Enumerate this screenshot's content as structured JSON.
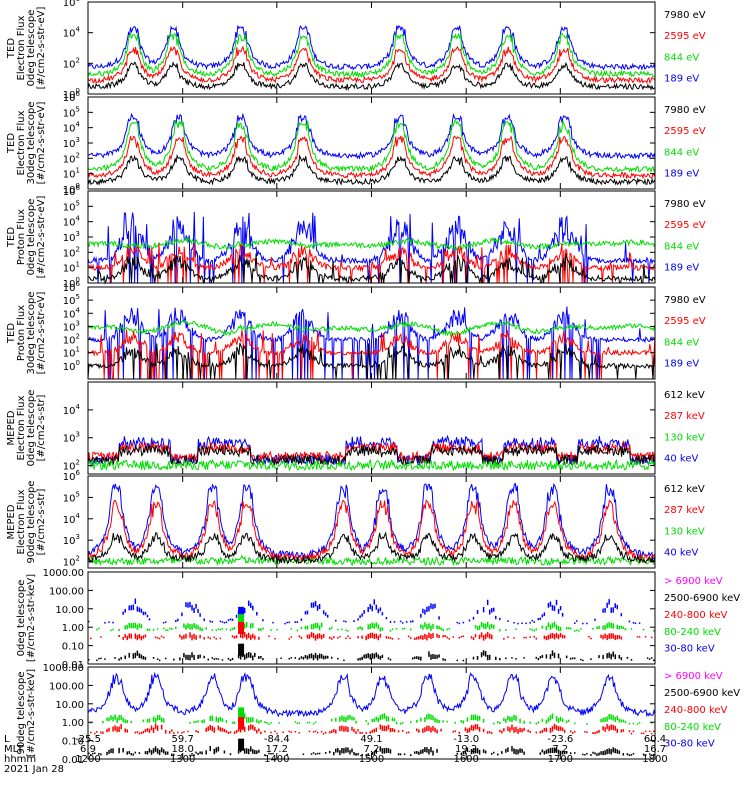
{
  "colors": {
    "black": "#000000",
    "red": "#ff0000",
    "green": "#00dd00",
    "blue": "#0000ff",
    "magenta": "#ff00ff"
  },
  "chart_data": [
    {
      "type": "line",
      "ylabel": [
        "TED",
        "Electron Flux",
        "0deg telescope",
        "[#/cm2-s-str-eV]"
      ],
      "ylim": [
        1,
        1000000
      ],
      "log": true,
      "yticks": [
        {
          "value": 1,
          "label": "10",
          "exp": "0"
        },
        {
          "value": 100,
          "label": "10",
          "exp": "2"
        },
        {
          "value": 10000,
          "label": "10",
          "exp": "4"
        },
        {
          "value": 1000000,
          "label": "10",
          "exp": "6"
        }
      ],
      "legend": [
        {
          "label": "7980 eV",
          "color": "black"
        },
        {
          "label": "2595 eV",
          "color": "red"
        },
        {
          "label": "844 eV",
          "color": "green"
        },
        {
          "label": "189 eV",
          "color": "blue"
        }
      ],
      "bursts": [
        0.08,
        0.15,
        0.27,
        0.38,
        0.55,
        0.65,
        0.74,
        0.84
      ],
      "series": [
        {
          "color": "blue",
          "base": 60,
          "peak": 20000,
          "shape": "burst"
        },
        {
          "color": "green",
          "base": 20,
          "peak": 6000,
          "shape": "burst"
        },
        {
          "color": "red",
          "base": 8,
          "peak": 800,
          "shape": "burst"
        },
        {
          "color": "black",
          "base": 3,
          "peak": 80,
          "shape": "burst"
        }
      ]
    },
    {
      "type": "line",
      "ylabel": [
        "TED",
        "Electron Flux",
        "30deg telescope",
        "[#/cm2-s-str-eV]"
      ],
      "ylim": [
        1,
        1000000
      ],
      "log": true,
      "yticks": [
        {
          "value": 1,
          "label": "10",
          "exp": "0"
        },
        {
          "value": 10,
          "label": "10",
          "exp": "1"
        },
        {
          "value": 100,
          "label": "10",
          "exp": "2"
        },
        {
          "value": 1000,
          "label": "10",
          "exp": "3"
        },
        {
          "value": 10000,
          "label": "10",
          "exp": "4"
        },
        {
          "value": 100000,
          "label": "10",
          "exp": "5"
        },
        {
          "value": 1000000,
          "label": "10",
          "exp": "6"
        }
      ],
      "legend": [
        {
          "label": "7980 eV",
          "color": "black"
        },
        {
          "label": "2595 eV",
          "color": "red"
        },
        {
          "label": "844 eV",
          "color": "green"
        },
        {
          "label": "189 eV",
          "color": "blue"
        }
      ],
      "bursts": [
        0.08,
        0.16,
        0.27,
        0.38,
        0.55,
        0.65,
        0.74,
        0.84
      ],
      "series": [
        {
          "color": "blue",
          "base": 150,
          "peak": 50000,
          "shape": "burst"
        },
        {
          "color": "green",
          "base": 20,
          "peak": 20000,
          "shape": "burst"
        },
        {
          "color": "red",
          "base": 8,
          "peak": 2000,
          "shape": "burst"
        },
        {
          "color": "black",
          "base": 3,
          "peak": 100,
          "shape": "burst"
        }
      ]
    },
    {
      "type": "line",
      "ylabel": [
        "TED",
        "Proton Flux",
        "0deg telescope",
        "[#/cm2-s-str-eV]"
      ],
      "ylim": [
        1,
        1000000
      ],
      "log": true,
      "yticks": [
        {
          "value": 1,
          "label": "10",
          "exp": "0"
        },
        {
          "value": 10,
          "label": "10",
          "exp": "1"
        },
        {
          "value": 100,
          "label": "10",
          "exp": "2"
        },
        {
          "value": 1000,
          "label": "10",
          "exp": "3"
        },
        {
          "value": 10000,
          "label": "10",
          "exp": "4"
        },
        {
          "value": 100000,
          "label": "10",
          "exp": "5"
        },
        {
          "value": 1000000,
          "label": "10",
          "exp": "6"
        }
      ],
      "legend": [
        {
          "label": "7980 eV",
          "color": "black"
        },
        {
          "label": "2595 eV",
          "color": "red"
        },
        {
          "label": "844 eV",
          "color": "green"
        },
        {
          "label": "189 eV",
          "color": "blue"
        }
      ],
      "bursts": [
        0.08,
        0.16,
        0.27,
        0.38,
        0.55,
        0.65,
        0.74,
        0.84
      ],
      "series": [
        {
          "color": "blue",
          "base": 30,
          "peak": 30000,
          "shape": "spiky"
        },
        {
          "color": "green",
          "base": 200,
          "peak": 600,
          "shape": "wave"
        },
        {
          "color": "red",
          "base": 10,
          "peak": 300,
          "shape": "spiky"
        },
        {
          "color": "black",
          "base": 2,
          "peak": 60,
          "shape": "spiky"
        }
      ]
    },
    {
      "type": "line",
      "ylabel": [
        "TED",
        "Proton Flux",
        "30deg telescope",
        "[#/cm2-s-str-eV]"
      ],
      "ylim": [
        0.1,
        1000000
      ],
      "log": true,
      "yticks": [
        {
          "value": 1,
          "label": "10",
          "exp": "0"
        },
        {
          "value": 10,
          "label": "10",
          "exp": "1"
        },
        {
          "value": 100,
          "label": "10",
          "exp": "2"
        },
        {
          "value": 1000,
          "label": "10",
          "exp": "3"
        },
        {
          "value": 10000,
          "label": "10",
          "exp": "4"
        },
        {
          "value": 100000,
          "label": "10",
          "exp": "5"
        },
        {
          "value": 1000000,
          "label": "10",
          "exp": "6"
        }
      ],
      "legend": [
        {
          "label": "7980 eV",
          "color": "black"
        },
        {
          "label": "2595 eV",
          "color": "red"
        },
        {
          "label": "844 eV",
          "color": "green"
        },
        {
          "label": "189 eV",
          "color": "blue"
        }
      ],
      "bursts": [
        0.08,
        0.16,
        0.27,
        0.38,
        0.55,
        0.65,
        0.74,
        0.84
      ],
      "series": [
        {
          "color": "blue",
          "base": 100,
          "peak": 30000,
          "shape": "spiky"
        },
        {
          "color": "green",
          "base": 300,
          "peak": 2000,
          "shape": "wave"
        },
        {
          "color": "red",
          "base": 10,
          "peak": 400,
          "shape": "spiky"
        },
        {
          "color": "black",
          "base": 1,
          "peak": 40,
          "shape": "spiky"
        }
      ]
    },
    {
      "type": "line",
      "ylabel": [
        "MEPED",
        "Electron Flux",
        "0deg telescope",
        "[#/cm2-s-str]"
      ],
      "ylim": [
        50,
        100000
      ],
      "log": true,
      "yticks": [
        {
          "value": 100,
          "label": "10",
          "exp": "2"
        },
        {
          "value": 1000,
          "label": "10",
          "exp": "3"
        },
        {
          "value": 10000,
          "label": "10",
          "exp": "4"
        }
      ],
      "legend": [
        {
          "label": "612 keV",
          "color": "black"
        },
        {
          "label": "287 keV",
          "color": "red"
        },
        {
          "label": "130 keV",
          "color": "green"
        },
        {
          "label": "40 keV",
          "color": "blue"
        }
      ],
      "bursts": [
        0.1,
        0.24,
        0.5,
        0.65,
        0.78,
        0.91
      ],
      "series": [
        {
          "color": "blue",
          "base": 150,
          "peak": 800,
          "shape": "plateau"
        },
        {
          "color": "red",
          "base": 200,
          "peak": 500,
          "shape": "plateau"
        },
        {
          "color": "black",
          "base": 150,
          "peak": 400,
          "shape": "plateau"
        },
        {
          "color": "green",
          "base": 100,
          "peak": 130,
          "shape": "floor"
        }
      ]
    },
    {
      "type": "line",
      "ylabel": [
        "MEPED",
        "Electron Flux",
        "90deg telescope",
        "[#/cm2-s-str]"
      ],
      "ylim": [
        50,
        1000000
      ],
      "log": true,
      "yticks": [
        {
          "value": 100,
          "label": "10",
          "exp": "2"
        },
        {
          "value": 1000,
          "label": "10",
          "exp": "3"
        },
        {
          "value": 10000,
          "label": "10",
          "exp": "4"
        },
        {
          "value": 100000,
          "label": "10",
          "exp": "5"
        },
        {
          "value": 1000000,
          "label": "10",
          "exp": "6"
        }
      ],
      "legend": [
        {
          "label": "612 keV",
          "color": "black"
        },
        {
          "label": "287 keV",
          "color": "red"
        },
        {
          "label": "130 keV",
          "color": "green"
        },
        {
          "label": "40 keV",
          "color": "blue"
        }
      ],
      "bursts": [
        0.05,
        0.12,
        0.22,
        0.28,
        0.45,
        0.52,
        0.6,
        0.68,
        0.75,
        0.82,
        0.92
      ],
      "series": [
        {
          "color": "blue",
          "base": 200,
          "peak": 300000,
          "shape": "burst"
        },
        {
          "color": "red",
          "base": 150,
          "peak": 50000,
          "shape": "burst"
        },
        {
          "color": "green",
          "base": 100,
          "peak": 150,
          "shape": "floor"
        },
        {
          "color": "black",
          "base": 120,
          "peak": 1500,
          "shape": "burst"
        }
      ]
    },
    {
      "type": "scatter",
      "ylabel": [
        "0deg telescope",
        "[#/cm2-s-str-keV]"
      ],
      "ylim": [
        0.01,
        1000
      ],
      "log": true,
      "yticks": [
        {
          "value": 0.01,
          "label": "0.01"
        },
        {
          "value": 0.1,
          "label": "0.10"
        },
        {
          "value": 1,
          "label": "1.00"
        },
        {
          "value": 10,
          "label": "10.00"
        },
        {
          "value": 100,
          "label": "100.00"
        },
        {
          "value": 1000,
          "label": "1000.00"
        }
      ],
      "legend": [
        {
          "label": "> 6900 keV",
          "color": "magenta"
        },
        {
          "label": "2500-6900 keV",
          "color": "black"
        },
        {
          "label": "240-800 keV",
          "color": "red"
        },
        {
          "label": "80-240 keV",
          "color": "green"
        },
        {
          "label": "30-80 keV",
          "color": "blue"
        }
      ],
      "bursts": [
        0.08,
        0.18,
        0.28,
        0.4,
        0.5,
        0.6,
        0.7,
        0.82,
        0.92
      ],
      "series": [
        {
          "color": "blue",
          "base": 2,
          "peak": 40,
          "shape": "dots"
        },
        {
          "color": "green",
          "base": 0.8,
          "peak": 2,
          "shape": "dots"
        },
        {
          "color": "red",
          "base": 0.3,
          "peak": 0.5,
          "shape": "dots"
        },
        {
          "color": "black",
          "base": 0.02,
          "peak": 0.05,
          "shape": "dots"
        }
      ]
    },
    {
      "type": "scatter",
      "ylabel": [
        "90deg telescope",
        "[#/cm2-s-str-keV]"
      ],
      "ylim": [
        0.01,
        1000
      ],
      "log": true,
      "yticks": [
        {
          "value": 0.01,
          "label": "0.01"
        },
        {
          "value": 0.1,
          "label": "0.10"
        },
        {
          "value": 1,
          "label": "1.00"
        },
        {
          "value": 10,
          "label": "10.00"
        },
        {
          "value": 100,
          "label": "100.00"
        },
        {
          "value": 1000,
          "label": "1000.00"
        }
      ],
      "legend": [
        {
          "label": "> 6900 keV",
          "color": "magenta"
        },
        {
          "label": "2500-6900 keV",
          "color": "black"
        },
        {
          "label": "240-800 keV",
          "color": "red"
        },
        {
          "label": "80-240 keV",
          "color": "green"
        },
        {
          "label": "30-80 keV",
          "color": "blue"
        }
      ],
      "bursts": [
        0.05,
        0.12,
        0.22,
        0.28,
        0.45,
        0.52,
        0.6,
        0.68,
        0.75,
        0.82,
        0.92
      ],
      "series": [
        {
          "color": "blue",
          "base": 3,
          "peak": 300,
          "shape": "burst"
        },
        {
          "color": "green",
          "base": 1,
          "peak": 3,
          "shape": "dots"
        },
        {
          "color": "red",
          "base": 0.3,
          "peak": 0.8,
          "shape": "dots"
        },
        {
          "color": "black",
          "base": 0.02,
          "peak": 0.05,
          "shape": "dots"
        }
      ]
    }
  ],
  "storm": {
    "x": 0.27
  },
  "x_axis": {
    "row_labels": [
      "L",
      "MLT",
      "hhmm",
      "2021 Jan 28"
    ],
    "ticks": [
      {
        "pos": 0.0,
        "L": "-25.5",
        "MLT": "6.9",
        "hhmm": "1200"
      },
      {
        "pos": 0.167,
        "L": "59.7",
        "MLT": "18.0",
        "hhmm": "1300"
      },
      {
        "pos": 0.333,
        "L": "-84.4",
        "MLT": "17.2",
        "hhmm": "1400"
      },
      {
        "pos": 0.5,
        "L": "49.1",
        "MLT": "7.2",
        "hhmm": "1500"
      },
      {
        "pos": 0.667,
        "L": "-13.0",
        "MLT": "19.2",
        "hhmm": "1600"
      },
      {
        "pos": 0.833,
        "L": "-23.6",
        "MLT": "7.2",
        "hhmm": "1700"
      },
      {
        "pos": 1.0,
        "L": "60.4",
        "MLT": "16.7",
        "hhmm": "1800"
      }
    ]
  }
}
